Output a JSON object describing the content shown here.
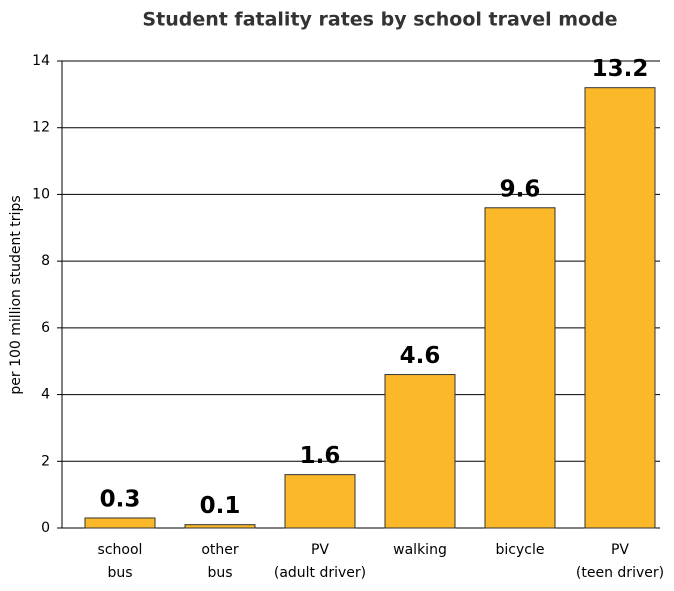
{
  "chart_data": {
    "type": "bar",
    "title": "Student fatality rates by school travel mode",
    "y_label": "per 100 million student trips",
    "categories": [
      [
        "school",
        "bus"
      ],
      [
        "other",
        "bus"
      ],
      [
        "PV",
        "(adult driver)"
      ],
      [
        "walking"
      ],
      [
        "bicycle"
      ],
      [
        "PV",
        "(teen driver)"
      ]
    ],
    "values": [
      0.3,
      0.1,
      1.6,
      4.6,
      9.6,
      13.2
    ],
    "color": "#fbb829",
    "ylim": [
      0,
      14
    ],
    "yticks": [
      0,
      2,
      4,
      6,
      8,
      10,
      12,
      14
    ],
    "grid": true
  }
}
